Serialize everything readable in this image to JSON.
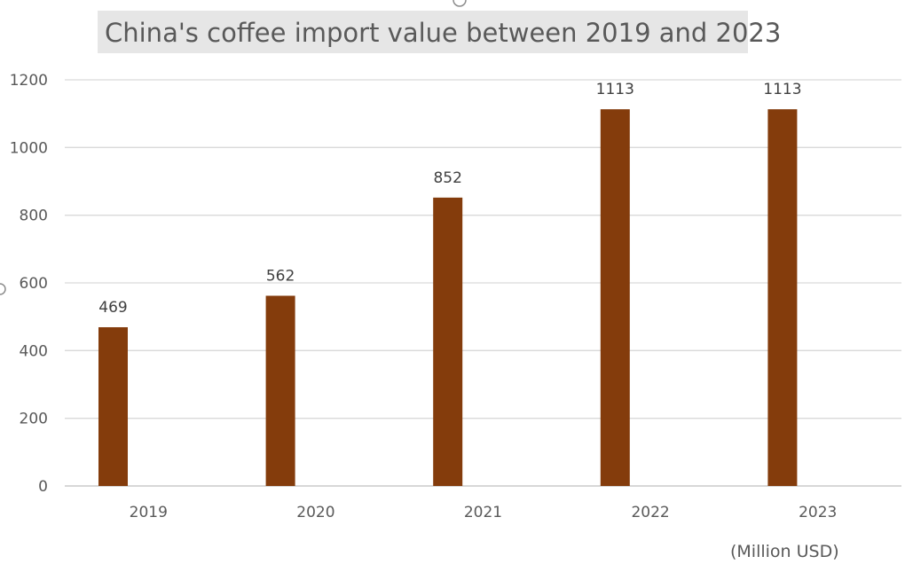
{
  "chart_data": {
    "type": "bar",
    "title": "China's coffee import value between 2019 and 2023",
    "unit_label": "(Million USD)",
    "categories": [
      "2019",
      "2020",
      "2021",
      "2022",
      "2023"
    ],
    "series": [
      {
        "values": [
          469,
          562,
          852,
          1113,
          1113
        ],
        "color": "#843c0c"
      }
    ],
    "data_labels": [
      "469",
      "562",
      "852",
      "1113",
      "1113"
    ],
    "ylim": [
      0,
      1200
    ],
    "yticks": [
      0,
      200,
      400,
      600,
      800,
      1000,
      1200
    ],
    "grid": true,
    "legend": "none",
    "xlabel": "",
    "ylabel": ""
  }
}
